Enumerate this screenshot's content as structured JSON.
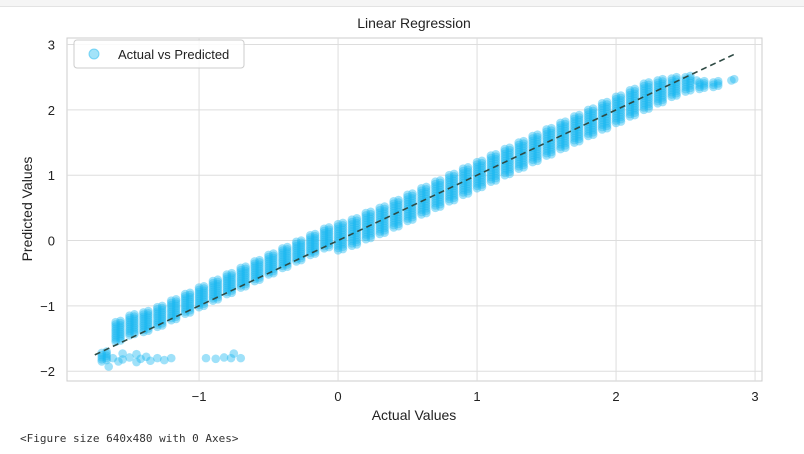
{
  "chart_data": {
    "type": "scatter",
    "title": "Linear Regression",
    "xlabel": "Actual Values",
    "ylabel": "Predicted Values",
    "xlim": [
      -1.95,
      3.05
    ],
    "ylim": [
      -2.15,
      3.1
    ],
    "xticks": [
      -1,
      0,
      1,
      2,
      3
    ],
    "yticks": [
      -2,
      -1,
      0,
      1,
      2,
      3
    ],
    "grid": true,
    "legend": {
      "placement": "top-left",
      "entries": [
        "Actual vs Predicted"
      ]
    },
    "series": [
      {
        "name": "Actual vs Predicted",
        "color": "#1ab8f0",
        "column_step": 0.1,
        "columns": [
          {
            "x": -1.7,
            "ymin": -1.85,
            "ymax": -1.72
          },
          {
            "x": -1.6,
            "ymin": -1.55,
            "ymax": -1.25
          },
          {
            "x": -1.5,
            "ymin": -1.45,
            "ymax": -1.15
          },
          {
            "x": -1.4,
            "ymin": -1.4,
            "ymax": -1.1
          },
          {
            "x": -1.3,
            "ymin": -1.32,
            "ymax": -1.02
          },
          {
            "x": -1.2,
            "ymin": -1.22,
            "ymax": -0.92
          },
          {
            "x": -1.1,
            "ymin": -1.12,
            "ymax": -0.82
          },
          {
            "x": -1.0,
            "ymin": -1.02,
            "ymax": -0.72
          },
          {
            "x": -0.9,
            "ymin": -0.92,
            "ymax": -0.62
          },
          {
            "x": -0.8,
            "ymin": -0.82,
            "ymax": -0.52
          },
          {
            "x": -0.7,
            "ymin": -0.72,
            "ymax": -0.42
          },
          {
            "x": -0.6,
            "ymin": -0.62,
            "ymax": -0.32
          },
          {
            "x": -0.5,
            "ymin": -0.52,
            "ymax": -0.22
          },
          {
            "x": -0.4,
            "ymin": -0.42,
            "ymax": -0.12
          },
          {
            "x": -0.3,
            "ymin": -0.32,
            "ymax": -0.02
          },
          {
            "x": -0.2,
            "ymin": -0.22,
            "ymax": 0.08
          },
          {
            "x": -0.1,
            "ymin": -0.12,
            "ymax": 0.18
          },
          {
            "x": 0.0,
            "ymin": -0.15,
            "ymax": 0.25
          },
          {
            "x": 0.1,
            "ymin": -0.08,
            "ymax": 0.32
          },
          {
            "x": 0.2,
            "ymin": 0.02,
            "ymax": 0.42
          },
          {
            "x": 0.3,
            "ymin": 0.1,
            "ymax": 0.5
          },
          {
            "x": 0.4,
            "ymin": 0.2,
            "ymax": 0.6
          },
          {
            "x": 0.5,
            "ymin": 0.3,
            "ymax": 0.7
          },
          {
            "x": 0.6,
            "ymin": 0.4,
            "ymax": 0.8
          },
          {
            "x": 0.7,
            "ymin": 0.5,
            "ymax": 0.9
          },
          {
            "x": 0.8,
            "ymin": 0.6,
            "ymax": 1.0
          },
          {
            "x": 0.9,
            "ymin": 0.7,
            "ymax": 1.1
          },
          {
            "x": 1.0,
            "ymin": 0.8,
            "ymax": 1.2
          },
          {
            "x": 1.1,
            "ymin": 0.9,
            "ymax": 1.3
          },
          {
            "x": 1.2,
            "ymin": 1.0,
            "ymax": 1.4
          },
          {
            "x": 1.3,
            "ymin": 1.1,
            "ymax": 1.5
          },
          {
            "x": 1.4,
            "ymin": 1.2,
            "ymax": 1.6
          },
          {
            "x": 1.5,
            "ymin": 1.3,
            "ymax": 1.7
          },
          {
            "x": 1.6,
            "ymin": 1.4,
            "ymax": 1.8
          },
          {
            "x": 1.7,
            "ymin": 1.5,
            "ymax": 1.9
          },
          {
            "x": 1.8,
            "ymin": 1.6,
            "ymax": 2.0
          },
          {
            "x": 1.9,
            "ymin": 1.7,
            "ymax": 2.1
          },
          {
            "x": 2.0,
            "ymin": 1.8,
            "ymax": 2.2
          },
          {
            "x": 2.1,
            "ymin": 1.9,
            "ymax": 2.3
          },
          {
            "x": 2.2,
            "ymin": 2.0,
            "ymax": 2.4
          },
          {
            "x": 2.3,
            "ymin": 2.1,
            "ymax": 2.45
          },
          {
            "x": 2.4,
            "ymin": 2.2,
            "ymax": 2.48
          },
          {
            "x": 2.5,
            "ymin": 2.28,
            "ymax": 2.5
          },
          {
            "x": 2.6,
            "ymin": 2.32,
            "ymax": 2.42
          },
          {
            "x": 2.7,
            "ymin": 2.35,
            "ymax": 2.42
          }
        ],
        "points": [
          {
            "x": -1.62,
            "y": -1.8
          },
          {
            "x": -1.58,
            "y": -1.85
          },
          {
            "x": -1.55,
            "y": -1.82
          },
          {
            "x": -1.5,
            "y": -1.79
          },
          {
            "x": -1.45,
            "y": -1.86
          },
          {
            "x": -1.42,
            "y": -1.81
          },
          {
            "x": -1.38,
            "y": -1.78
          },
          {
            "x": -1.35,
            "y": -1.84
          },
          {
            "x": -1.3,
            "y": -1.8
          },
          {
            "x": -1.25,
            "y": -1.83
          },
          {
            "x": -1.2,
            "y": -1.8
          },
          {
            "x": -1.65,
            "y": -1.93
          },
          {
            "x": -1.55,
            "y": -1.73
          },
          {
            "x": -1.45,
            "y": -1.74
          },
          {
            "x": -0.95,
            "y": -1.8
          },
          {
            "x": -0.88,
            "y": -1.81
          },
          {
            "x": -0.82,
            "y": -1.79
          },
          {
            "x": -0.77,
            "y": -1.8
          },
          {
            "x": -0.75,
            "y": -1.73
          },
          {
            "x": -0.7,
            "y": -1.8
          },
          {
            "x": 2.58,
            "y": 2.45
          },
          {
            "x": 2.85,
            "y": 2.47
          },
          {
            "x": 2.83,
            "y": 2.45
          }
        ]
      }
    ],
    "reference_line": {
      "x": [
        -1.75,
        2.85
      ],
      "y": [
        -1.75,
        2.85
      ],
      "style": "dashed",
      "color": "#2e4a44"
    }
  },
  "footer": {
    "caption": "<Figure size 640x480 with 0 Axes>"
  }
}
